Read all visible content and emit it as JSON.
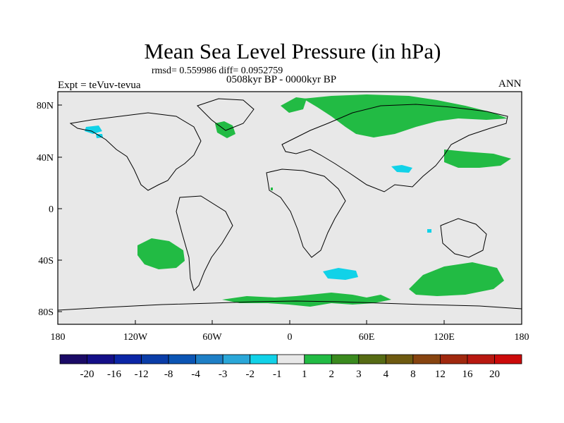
{
  "title": "Mean Sea Level Pressure (in hPa)",
  "stats_line": "rmsd= 0.559986 diff= 0.0952759",
  "period_line": "0508kyr BP - 0000kyr BP",
  "experiment_label": "Expt = teVuv-tevua",
  "season_label": "ANN",
  "lat_axis_labels": [
    "80N",
    "40N",
    "0",
    "40S",
    "80S"
  ],
  "lon_axis_labels": [
    "180",
    "120W",
    "60W",
    "0",
    "60E",
    "120E",
    "180"
  ],
  "colorbar": {
    "labels": [
      "-20",
      "-16",
      "-12",
      "-8",
      "-4",
      "-3",
      "-2",
      "-1",
      "1",
      "2",
      "3",
      "4",
      "8",
      "12",
      "16",
      "20"
    ],
    "colors": [
      "#1a0a66",
      "#140f88",
      "#0b26a6",
      "#0a3da8",
      "#0b55b4",
      "#1e7fc6",
      "#2aa7d8",
      "#11d2e8",
      "#e8e8e8",
      "#22bb44",
      "#3a8a1e",
      "#566b14",
      "#6e5a10",
      "#874410",
      "#a0280e",
      "#b81810",
      "#cc0a0a"
    ]
  },
  "colors": {
    "land_ocean_background": "#e8e8e8",
    "positive_anomaly": "#22bb44",
    "negative_anomaly": "#11d2e8",
    "coastline": "#000000"
  }
}
